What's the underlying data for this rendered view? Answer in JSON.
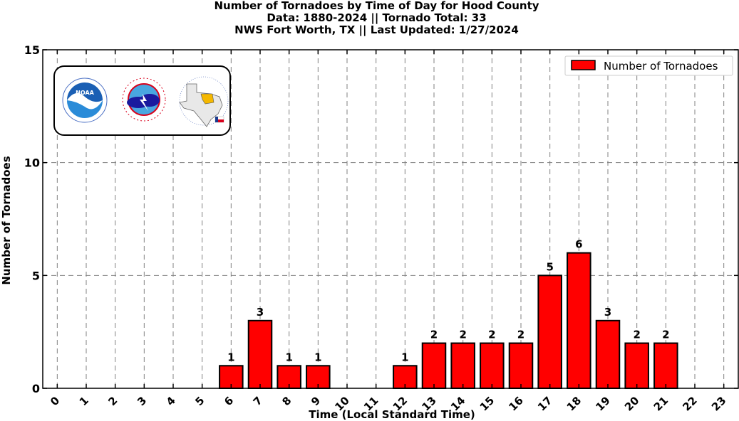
{
  "chart_data": {
    "type": "bar",
    "title": [
      "Number of Tornadoes by Time of Day for Hood County",
      "Data: 1880-2024 || Tornado Total: 33",
      "NWS Fort Worth, TX || Last Updated: 1/27/2024"
    ],
    "xlabel": "Time (Local Standard Time)",
    "ylabel": "Number of Tornadoes",
    "categories": [
      "0",
      "1",
      "2",
      "3",
      "4",
      "5",
      "6",
      "7",
      "8",
      "9",
      "10",
      "11",
      "12",
      "13",
      "14",
      "15",
      "16",
      "17",
      "18",
      "19",
      "20",
      "21",
      "22",
      "23"
    ],
    "series": [
      {
        "name": "Number of Tornadoes",
        "color": "#ff0000",
        "values": [
          0,
          0,
          0,
          0,
          0,
          0,
          1,
          3,
          1,
          1,
          0,
          0,
          1,
          2,
          2,
          2,
          2,
          5,
          6,
          3,
          2,
          2,
          0,
          0
        ]
      }
    ],
    "ylim": [
      0,
      15
    ],
    "yticks": [
      0,
      5,
      10,
      15
    ],
    "grid": true,
    "legend": "top-right",
    "logos": [
      "noaa-logo",
      "national-weather-service-logo",
      "nws-fort-worth-texas-logo"
    ]
  }
}
